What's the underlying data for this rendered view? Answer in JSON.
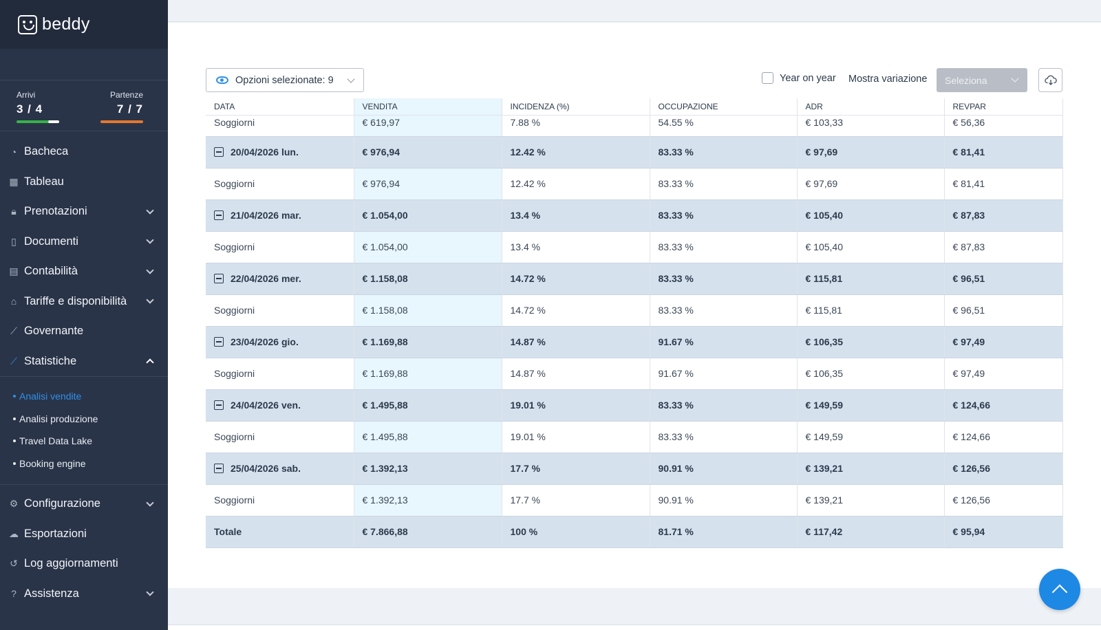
{
  "brand": {
    "name": "beddy"
  },
  "arrivals": {
    "label": "Arrivi",
    "value": "3 / 4"
  },
  "departures": {
    "label": "Partenze",
    "value": "7 / 7"
  },
  "nav": [
    {
      "label": "Bacheca",
      "icon": "speedometer-icon",
      "glyph": "◔",
      "has_chevron": false
    },
    {
      "label": "Tableau",
      "icon": "grid-icon",
      "glyph": "▦",
      "has_chevron": false
    },
    {
      "label": "Prenotazioni",
      "icon": "lock-icon",
      "glyph": "🔒︎",
      "has_chevron": true
    },
    {
      "label": "Documenti",
      "icon": "document-icon",
      "glyph": "▯",
      "has_chevron": true
    },
    {
      "label": "Contabilità",
      "icon": "calculator-icon",
      "glyph": "▤",
      "has_chevron": true
    },
    {
      "label": "Tariffe e disponibilità",
      "icon": "tag-icon",
      "glyph": "⌂",
      "has_chevron": true
    },
    {
      "label": "Governante",
      "icon": "broom-icon",
      "glyph": "⟋",
      "has_chevron": false
    },
    {
      "label": "Statistiche",
      "icon": "chart-line-icon",
      "glyph": "⟋",
      "has_chevron": true,
      "expanded": true
    }
  ],
  "submenu": [
    {
      "label": "Analisi vendite",
      "active": true
    },
    {
      "label": "Analisi produzione"
    },
    {
      "label": "Travel Data Lake"
    },
    {
      "label": "Booking engine"
    }
  ],
  "nav_bottom": [
    {
      "label": "Configurazione",
      "icon": "gear-icon",
      "glyph": "⚙",
      "has_chevron": true
    },
    {
      "label": "Esportazioni",
      "icon": "cloud-download-icon",
      "glyph": "☁",
      "has_chevron": false
    },
    {
      "label": "Log aggiornamenti",
      "icon": "history-icon",
      "glyph": "↺",
      "has_chevron": false
    },
    {
      "label": "Assistenza",
      "icon": "help-circle-icon",
      "glyph": "?",
      "has_chevron": true
    }
  ],
  "toolbar": {
    "options_label": "Opzioni selezionate: 9",
    "yoy_label": "Year on year",
    "variation_label": "Mostra variazione",
    "variation_placeholder": "Seleziona"
  },
  "table": {
    "columns": [
      "DATA",
      "VENDITA",
      "INCIDENZA (%)",
      "OCCUPAZIONE",
      "ADR",
      "REVPAR"
    ],
    "rows": [
      {
        "type": "partial",
        "cells": [
          "Soggiorni",
          "€ 619,97",
          "7.88 %",
          "54.55 %",
          "€ 103,33",
          "€ 56,36"
        ]
      },
      {
        "type": "group",
        "cells": [
          "20/04/2026 lun.",
          "€ 976,94",
          "12.42 %",
          "83.33 %",
          "€ 97,69",
          "€ 81,41"
        ]
      },
      {
        "type": "child",
        "cells": [
          "Soggiorni",
          "€ 976,94",
          "12.42 %",
          "83.33 %",
          "€ 97,69",
          "€ 81,41"
        ]
      },
      {
        "type": "group",
        "cells": [
          "21/04/2026 mar.",
          "€ 1.054,00",
          "13.4 %",
          "83.33 %",
          "€ 105,40",
          "€ 87,83"
        ]
      },
      {
        "type": "child",
        "cells": [
          "Soggiorni",
          "€ 1.054,00",
          "13.4 %",
          "83.33 %",
          "€ 105,40",
          "€ 87,83"
        ]
      },
      {
        "type": "group",
        "cells": [
          "22/04/2026 mer.",
          "€ 1.158,08",
          "14.72 %",
          "83.33 %",
          "€ 115,81",
          "€ 96,51"
        ]
      },
      {
        "type": "child",
        "cells": [
          "Soggiorni",
          "€ 1.158,08",
          "14.72 %",
          "83.33 %",
          "€ 115,81",
          "€ 96,51"
        ]
      },
      {
        "type": "group",
        "cells": [
          "23/04/2026 gio.",
          "€ 1.169,88",
          "14.87 %",
          "91.67 %",
          "€ 106,35",
          "€ 97,49"
        ]
      },
      {
        "type": "child",
        "cells": [
          "Soggiorni",
          "€ 1.169,88",
          "14.87 %",
          "91.67 %",
          "€ 106,35",
          "€ 97,49"
        ]
      },
      {
        "type": "group",
        "cells": [
          "24/04/2026 ven.",
          "€ 1.495,88",
          "19.01 %",
          "83.33 %",
          "€ 149,59",
          "€ 124,66"
        ]
      },
      {
        "type": "child",
        "cells": [
          "Soggiorni",
          "€ 1.495,88",
          "19.01 %",
          "83.33 %",
          "€ 149,59",
          "€ 124,66"
        ]
      },
      {
        "type": "group",
        "cells": [
          "25/04/2026 sab.",
          "€ 1.392,13",
          "17.7 %",
          "90.91 %",
          "€ 139,21",
          "€ 126,56"
        ]
      },
      {
        "type": "child",
        "cells": [
          "Soggiorni",
          "€ 1.392,13",
          "17.7 %",
          "90.91 %",
          "€ 139,21",
          "€ 126,56"
        ]
      },
      {
        "type": "total",
        "cells": [
          "Totale",
          "€ 7.866,88",
          "100 %",
          "81.71 %",
          "€ 117,42",
          "€ 95,94"
        ]
      }
    ]
  },
  "colors": {
    "sidebar": "#2a3448",
    "accent": "#2f8fe8",
    "group_row": "#d6e1ee",
    "highlight_column": "#e8f6fd"
  }
}
